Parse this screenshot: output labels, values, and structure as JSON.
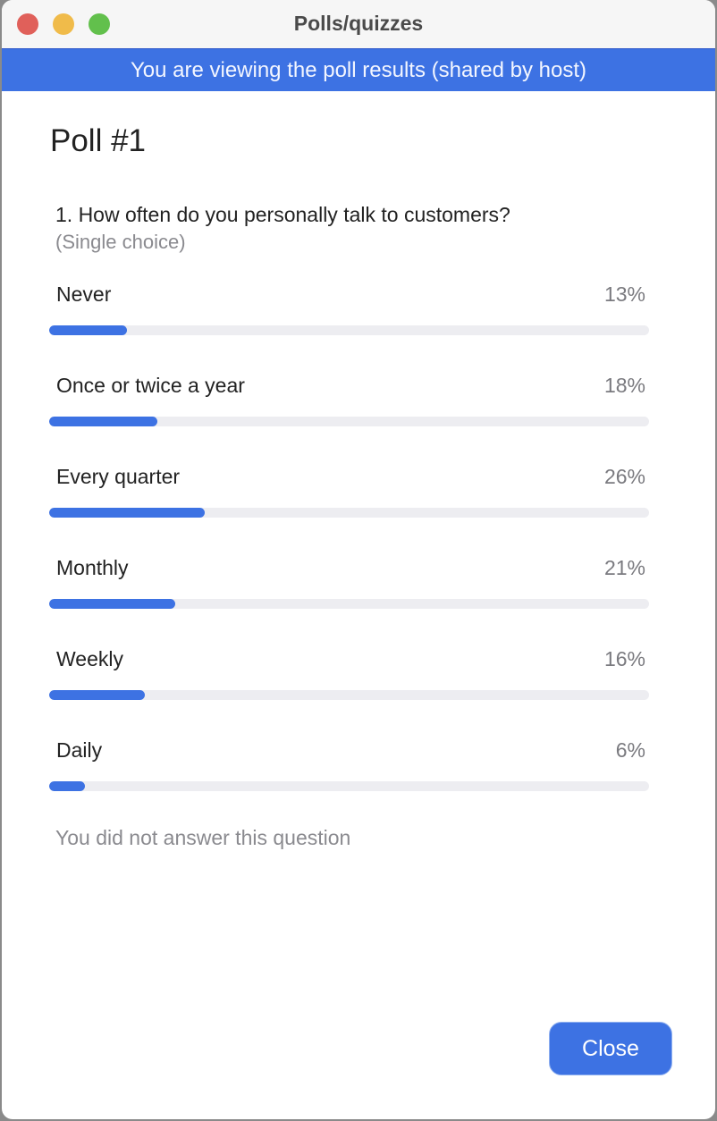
{
  "window": {
    "title": "Polls/quizzes",
    "controls": {
      "close_color": "#e0605a",
      "minimize_color": "#f0bb4a",
      "zoom_color": "#62c04c"
    }
  },
  "banner": {
    "text": "You are viewing the poll results (shared by host)"
  },
  "poll": {
    "title": "Poll #1",
    "question": "1. How often do you personally talk to customers?",
    "type": "(Single choice)",
    "options": [
      {
        "label": "Never",
        "percent_text": "13%",
        "percent": 13
      },
      {
        "label": "Once or twice a year",
        "percent_text": "18%",
        "percent": 18
      },
      {
        "label": "Every quarter",
        "percent_text": "26%",
        "percent": 26
      },
      {
        "label": "Monthly",
        "percent_text": "21%",
        "percent": 21
      },
      {
        "label": "Weekly",
        "percent_text": "16%",
        "percent": 16
      },
      {
        "label": "Daily",
        "percent_text": "6%",
        "percent": 6
      }
    ],
    "note": "You did not answer this question"
  },
  "footer": {
    "close_label": "Close"
  },
  "colors": {
    "accent": "#3d72e3",
    "track": "#ededf1"
  }
}
